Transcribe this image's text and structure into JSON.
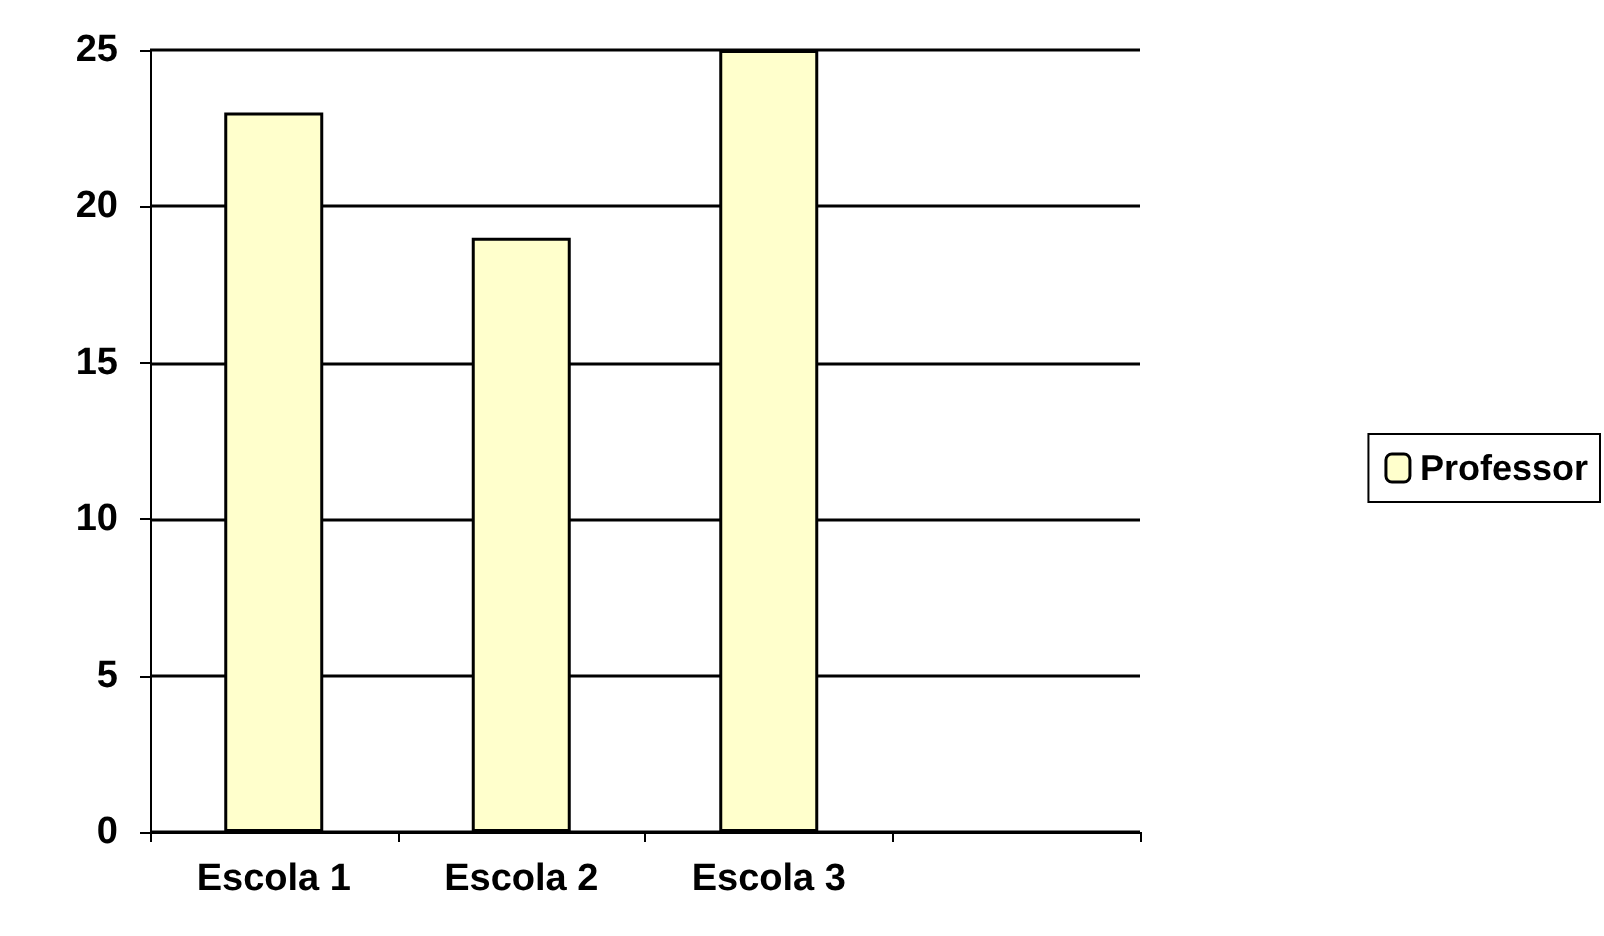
{
  "chart_data": {
    "type": "bar",
    "categories": [
      "Escola 1",
      "Escola 2",
      "Escola 3",
      null
    ],
    "series": [
      {
        "name": "Professor",
        "color": "#ffffcc",
        "values": [
          23,
          19,
          25,
          null
        ]
      }
    ],
    "ylim": [
      0,
      25
    ],
    "yticks": [
      0,
      5,
      10,
      15,
      20,
      25
    ],
    "grid": "y",
    "legend": "right"
  }
}
